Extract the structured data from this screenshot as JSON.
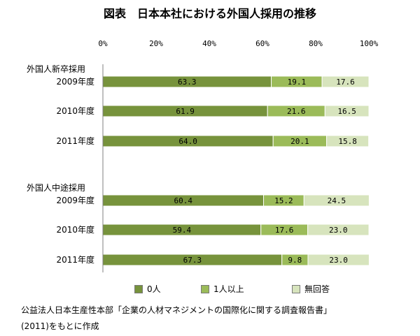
{
  "title": "図表　日本本社における外国人採用の推移",
  "chart_data": {
    "type": "bar",
    "orientation": "horizontal",
    "stacked": "percent",
    "xlim": [
      0,
      100
    ],
    "xticks": [
      "0%",
      "20%",
      "40%",
      "60%",
      "80%",
      "100%"
    ],
    "groups": [
      {
        "label": "外国人新卒採用",
        "categories": [
          "2009年度",
          "2010年度",
          "2011年度"
        ]
      },
      {
        "label": "外国人中途採用",
        "categories": [
          "2009年度",
          "2010年度",
          "2011年度"
        ]
      }
    ],
    "series": [
      {
        "name": "0人",
        "color": "#77933c",
        "values": [
          63.3,
          61.9,
          64.0,
          60.4,
          59.4,
          67.3
        ]
      },
      {
        "name": "1人以上",
        "color": "#9bbb59",
        "values": [
          19.1,
          21.6,
          20.1,
          15.2,
          17.6,
          9.8
        ]
      },
      {
        "name": "無回答",
        "color": "#d7e4bd",
        "values": [
          17.6,
          16.5,
          15.8,
          24.5,
          23.0,
          23.0
        ]
      }
    ],
    "data_labels": [
      [
        "63.3",
        "61.9",
        "64.0",
        "60.4",
        "59.4",
        "67.3"
      ],
      [
        "19.1",
        "21.6",
        "20.1",
        "15.2",
        "17.6",
        "9.8"
      ],
      [
        "17.6",
        "16.5",
        "15.8",
        "24.5",
        "23.0",
        "23.0"
      ]
    ],
    "legend_position": "bottom",
    "grid": false
  },
  "notes": {
    "line1": "公益法人日本生産性本部「企業の人材マネジメントの国際化に関する調査報告書」",
    "line2": "(2011)をもとに作成"
  }
}
